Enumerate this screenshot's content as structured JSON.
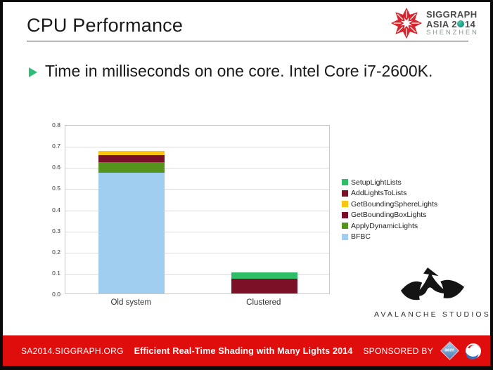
{
  "slide": {
    "title": "CPU Performance",
    "bullet_text": "Time in milliseconds on one core. Intel Core i7-2600K."
  },
  "siggraph_logo": {
    "line1": "SIGGRAPH",
    "line2_prefix": "ASIA 2",
    "line2_suffix": "14",
    "line3": "SHENZHEN",
    "star_color": "#d6252e"
  },
  "chart_data": {
    "type": "bar",
    "stacked": true,
    "title": "",
    "xlabel": "",
    "ylabel": "",
    "categories": [
      "Old system",
      "Clustered"
    ],
    "series": [
      {
        "name": "BFBC",
        "color": "#9fcef0",
        "values": [
          0.57,
          0
        ]
      },
      {
        "name": "ApplyDynamicLights",
        "color": "#55931d",
        "values": [
          0.05,
          0
        ]
      },
      {
        "name": "GetBoundingBoxLights",
        "color": "#7a0e28",
        "values": [
          0.035,
          0
        ]
      },
      {
        "name": "GetBoundingSphereLights",
        "color": "#fdc511",
        "values": [
          0.018,
          0
        ]
      },
      {
        "name": "AddLightsToLists",
        "color": "#7c1026",
        "values": [
          0,
          0.07
        ]
      },
      {
        "name": "SetupLightLists",
        "color": "#2fbe67",
        "values": [
          0,
          0.03
        ]
      }
    ],
    "ylim": [
      0,
      0.8
    ],
    "ytick": 0.1,
    "grid": true,
    "legend_position": "right",
    "legend_order_top_to_bottom": [
      "SetupLightLists",
      "AddLightsToLists",
      "GetBoundingSphereLights",
      "GetBoundingBoxLights",
      "ApplyDynamicLights",
      "BFBC"
    ]
  },
  "branding": {
    "studio_name": "AVALANCHE STUDIOS"
  },
  "footer": {
    "left": "SA2014.SIGGRAPH.ORG",
    "center": "Efficient Real-Time Shading with Many Lights 2014",
    "right": "SPONSORED BY",
    "acm_label": "acm",
    "bar_color": "#e00d0d"
  }
}
